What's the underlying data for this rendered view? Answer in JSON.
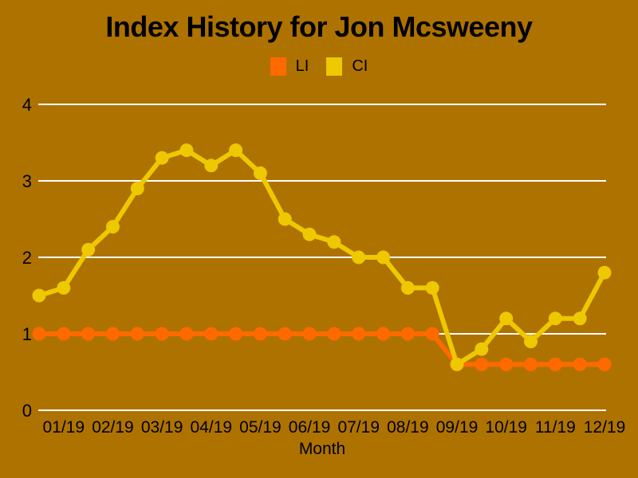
{
  "chart_data": {
    "type": "line",
    "title": "Index History for Jon Mcsweeny",
    "xlabel": "Month",
    "ylim": [
      0,
      4
    ],
    "y_ticks": [
      0,
      1,
      2,
      3,
      4
    ],
    "x_tick_labels": [
      "01/19",
      "02/19",
      "03/19",
      "04/19",
      "05/19",
      "06/19",
      "07/19",
      "08/19",
      "09/19",
      "10/19",
      "11/19",
      "12/19"
    ],
    "x_tick_positions": [
      1,
      3,
      5,
      7,
      9,
      11,
      13,
      15,
      17,
      19,
      21,
      23
    ],
    "points_per_month": 2,
    "grid": true,
    "legend_position": "top-center",
    "colors": {
      "background": "#ae7200",
      "text": "#000000",
      "grid": "#ffffff"
    },
    "series": [
      {
        "name": "LI",
        "color": "#ff6a00",
        "values": [
          1.0,
          1.0,
          1.0,
          1.0,
          1.0,
          1.0,
          1.0,
          1.0,
          1.0,
          1.0,
          1.0,
          1.0,
          1.0,
          1.0,
          1.0,
          1.0,
          1.0,
          0.6,
          0.6,
          0.6,
          0.6,
          0.6,
          0.6,
          0.6
        ]
      },
      {
        "name": "CI",
        "color": "#eec800",
        "values": [
          1.5,
          1.6,
          2.1,
          2.4,
          2.9,
          3.3,
          3.4,
          3.2,
          3.4,
          3.1,
          2.5,
          2.3,
          2.2,
          2.0,
          2.0,
          1.6,
          1.6,
          0.6,
          0.8,
          1.2,
          0.9,
          1.2,
          1.2,
          1.8
        ]
      }
    ]
  }
}
